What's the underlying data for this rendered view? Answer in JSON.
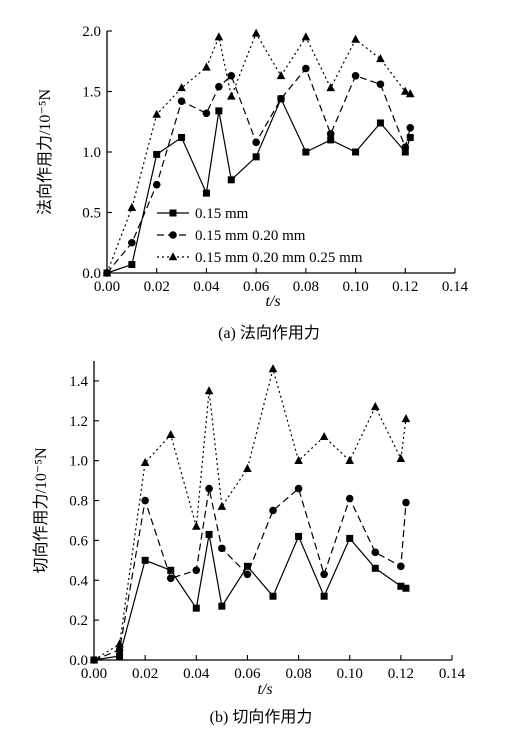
{
  "chart_data": [
    {
      "type": "line",
      "caption": "(a) 法向作用力",
      "xlabel": "t/s",
      "ylabel": "法向作用力/10⁻⁵N",
      "xlim": [
        0,
        0.14
      ],
      "ylim": [
        0,
        2.0
      ],
      "x_ticks": [
        "0.00",
        "0.02",
        "0.04",
        "0.06",
        "0.08",
        "0.10",
        "0.12",
        "0.14"
      ],
      "y_ticks": [
        "0.0",
        "0.5",
        "1.0",
        "1.5",
        "2.0"
      ],
      "legend_position": "lower-left",
      "series": [
        {
          "name": "0.15 mm",
          "marker": "square",
          "dash": "solid",
          "x": [
            0,
            0.01,
            0.02,
            0.03,
            0.04,
            0.045,
            0.05,
            0.06,
            0.07,
            0.08,
            0.09,
            0.1,
            0.11,
            0.12,
            0.122
          ],
          "y": [
            0,
            0.07,
            0.98,
            1.12,
            0.66,
            1.34,
            0.77,
            0.96,
            1.44,
            1.0,
            1.1,
            1.0,
            1.24,
            1.0,
            1.12
          ]
        },
        {
          "name": "0.15 mm 0.20 mm",
          "marker": "circle",
          "dash": "dashed",
          "x": [
            0,
            0.01,
            0.02,
            0.03,
            0.04,
            0.045,
            0.05,
            0.06,
            0.07,
            0.08,
            0.09,
            0.1,
            0.11,
            0.12,
            0.122
          ],
          "y": [
            0,
            0.25,
            0.73,
            1.42,
            1.32,
            1.54,
            1.63,
            1.08,
            1.44,
            1.69,
            1.15,
            1.63,
            1.56,
            1.04,
            1.2
          ]
        },
        {
          "name": "0.15 mm 0.20 mm 0.25 mm",
          "marker": "triangle",
          "dash": "dotted",
          "x": [
            0,
            0.01,
            0.02,
            0.03,
            0.04,
            0.045,
            0.05,
            0.06,
            0.07,
            0.08,
            0.09,
            0.1,
            0.11,
            0.12,
            0.122
          ],
          "y": [
            0,
            0.54,
            1.31,
            1.53,
            1.7,
            1.95,
            1.46,
            1.98,
            1.63,
            1.95,
            1.53,
            1.93,
            1.77,
            1.5,
            1.48
          ]
        }
      ]
    },
    {
      "type": "line",
      "caption": "(b) 切向作用力",
      "xlabel": "t/s",
      "ylabel": "切向作用力/10⁻⁵N",
      "xlim": [
        0,
        0.14
      ],
      "ylim": [
        0,
        1.5
      ],
      "x_ticks": [
        "0.00",
        "0.02",
        "0.04",
        "0.06",
        "0.08",
        "0.10",
        "0.12",
        "0.14"
      ],
      "y_ticks": [
        "0.0",
        "0.2",
        "0.4",
        "0.6",
        "0.8",
        "1.0",
        "1.2",
        "1.4"
      ],
      "series": [
        {
          "marker": "square",
          "dash": "solid",
          "x": [
            0,
            0.01,
            0.02,
            0.03,
            0.04,
            0.045,
            0.05,
            0.06,
            0.07,
            0.08,
            0.09,
            0.1,
            0.11,
            0.12,
            0.122
          ],
          "y": [
            0,
            0.02,
            0.5,
            0.45,
            0.26,
            0.63,
            0.27,
            0.47,
            0.32,
            0.62,
            0.32,
            0.61,
            0.46,
            0.37,
            0.36
          ]
        },
        {
          "marker": "circle",
          "dash": "dashed",
          "x": [
            0,
            0.01,
            0.02,
            0.03,
            0.04,
            0.045,
            0.05,
            0.06,
            0.07,
            0.08,
            0.09,
            0.1,
            0.11,
            0.12,
            0.122
          ],
          "y": [
            0,
            0.05,
            0.8,
            0.41,
            0.45,
            0.86,
            0.56,
            0.43,
            0.75,
            0.86,
            0.43,
            0.81,
            0.54,
            0.47,
            0.79
          ]
        },
        {
          "marker": "triangle",
          "dash": "dotted",
          "x": [
            0,
            0.01,
            0.02,
            0.03,
            0.04,
            0.045,
            0.05,
            0.06,
            0.07,
            0.08,
            0.09,
            0.1,
            0.11,
            0.12,
            0.122
          ],
          "y": [
            0,
            0.08,
            0.99,
            1.13,
            0.67,
            1.35,
            0.77,
            0.96,
            1.46,
            1.0,
            1.12,
            1.0,
            1.27,
            1.01,
            1.21
          ]
        }
      ]
    }
  ]
}
